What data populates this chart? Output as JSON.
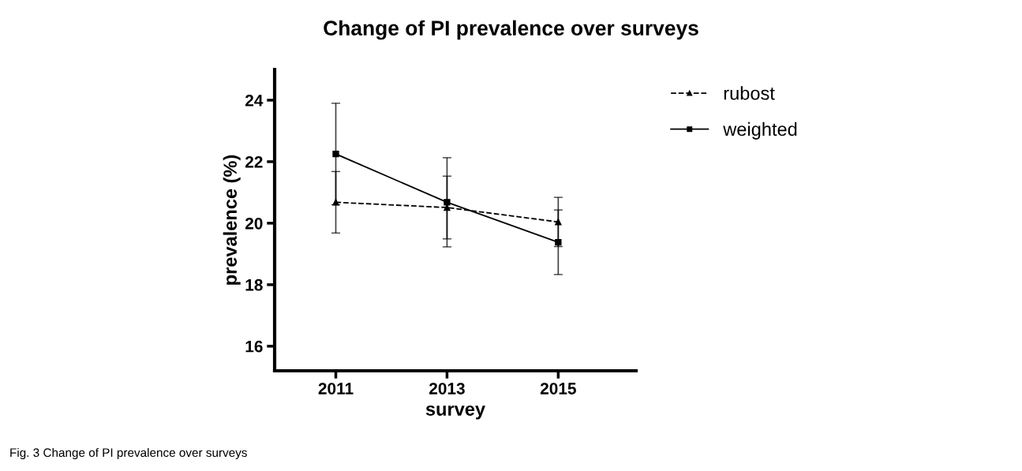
{
  "chart_data": {
    "type": "line",
    "title": "Change of PI prevalence over surveys",
    "xlabel": "survey",
    "ylabel": "prevalence (%)",
    "x": [
      2011,
      2013,
      2015
    ],
    "series": [
      {
        "name": "rubost",
        "color": "#000000",
        "values": [
          20.68,
          20.51,
          20.04
        ],
        "errors": [
          1.0,
          1.02,
          0.8
        ],
        "marker": "triangle",
        "line_style": "dashed"
      },
      {
        "name": "weighted",
        "color": "#000000",
        "values": [
          22.25,
          20.68,
          19.38
        ],
        "errors": [
          1.65,
          1.45,
          1.05
        ],
        "marker": "square",
        "line_style": "solid"
      }
    ],
    "xlim": [
      2009.9,
      2016.4
    ],
    "xticks": [
      2011,
      2013,
      2015
    ],
    "ylim": [
      15.2,
      25
    ],
    "yticks": [
      16,
      18,
      20,
      22,
      24
    ],
    "grid": false,
    "legend": "top right",
    "annotations": [
      "Fig. 3 Change of PI prevalence over surveys"
    ]
  }
}
